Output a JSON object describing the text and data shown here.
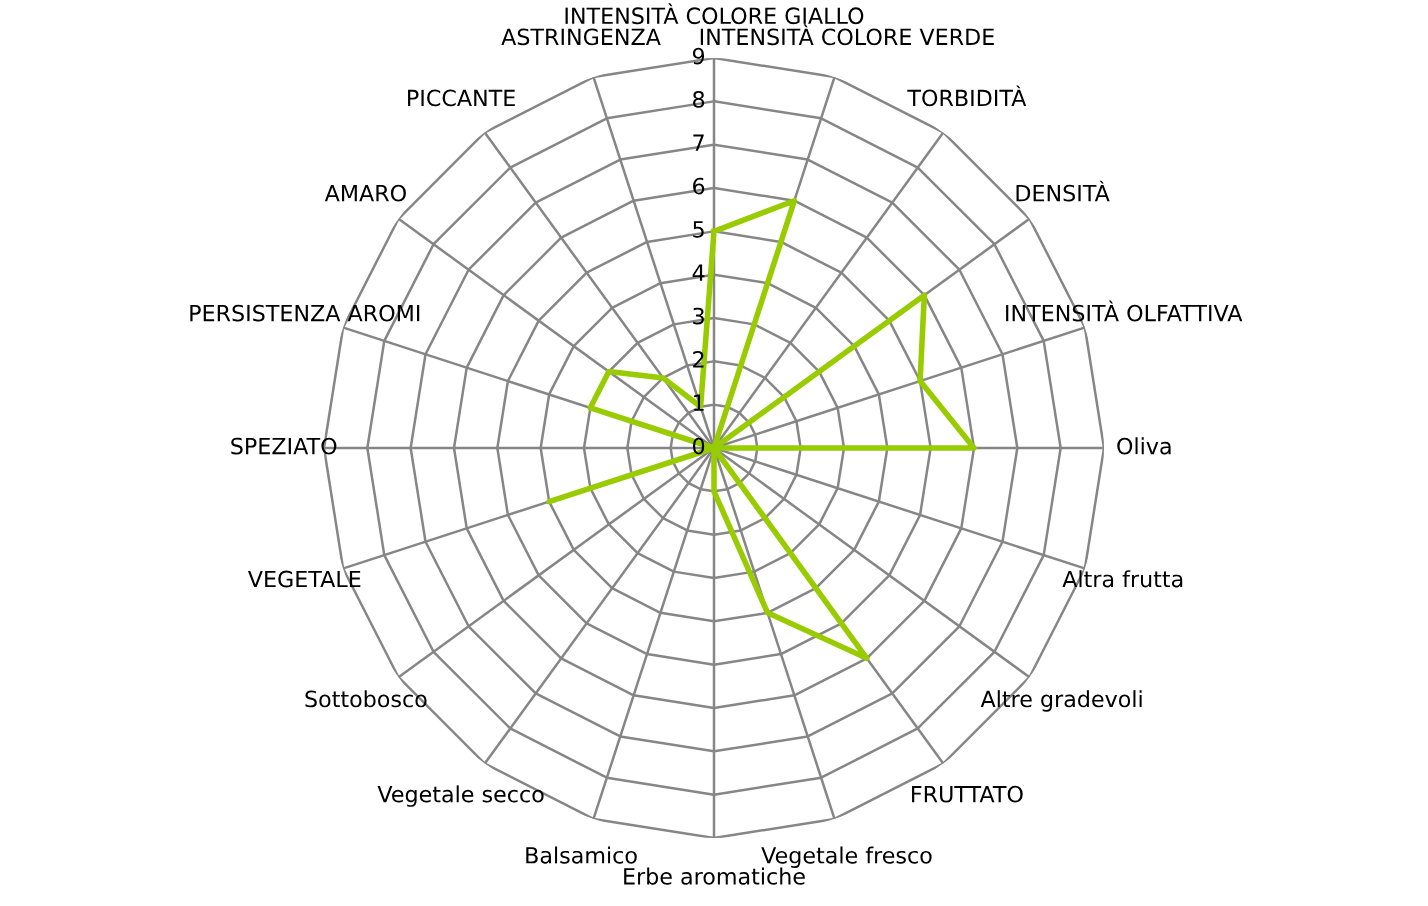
{
  "chart_data": {
    "type": "radar",
    "categories": [
      "INTENSITÀ COLORE GIALLO",
      "INTENSITÀ COLORE VERDE",
      "TORBIDITÀ",
      "DENSITÀ",
      "INTENSITÀ OLFATTIVA",
      "Oliva",
      "Altra frutta",
      "Altre gradevoli",
      "FRUTTATO",
      "Vegetale fresco",
      "Erbe aromatiche",
      "Balsamico",
      "Vegetale secco",
      "Sottobosco",
      "VEGETALE",
      "SPEZIATO",
      "PERSISTENZA AROMI",
      "AMARO",
      "PICCANTE",
      "ASTRINGENZA"
    ],
    "series": [
      {
        "color": "#99cc00",
        "values": [
          5,
          6,
          0,
          6,
          5,
          6,
          0,
          0,
          6,
          4,
          1,
          0,
          0,
          0,
          4,
          0,
          3,
          3,
          2,
          1
        ]
      }
    ],
    "ylim": [
      0,
      9
    ],
    "yticks": [
      0,
      1,
      2,
      3,
      4,
      5,
      6,
      7,
      8,
      9
    ],
    "grid": true,
    "marker": "none",
    "line_style": "solid",
    "legend": false
  }
}
